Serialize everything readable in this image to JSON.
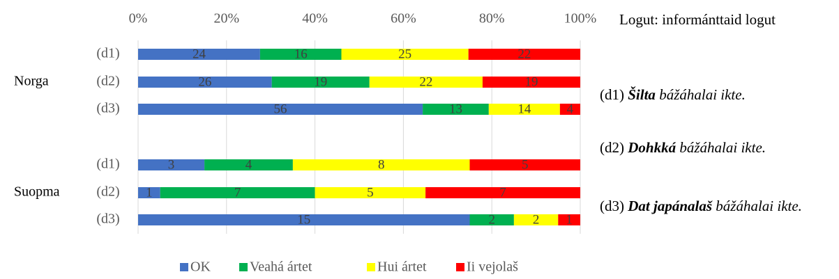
{
  "chart_data": {
    "type": "bar100",
    "orientation": "horizontal",
    "groups": [
      "Norga",
      "Suopma"
    ],
    "categories": [
      "(d1)",
      "(d2)",
      "(d3)",
      "(d1)",
      "(d2)",
      "(d3)"
    ],
    "series": [
      {
        "name": "OK",
        "color": "#4472c4",
        "values": [
          24,
          26,
          56,
          3,
          1,
          15
        ]
      },
      {
        "name": "Veahá ártet",
        "color": "#00b050",
        "values": [
          16,
          19,
          13,
          4,
          7,
          2
        ]
      },
      {
        "name": "Hui ártet",
        "color": "#ffff00",
        "values": [
          25,
          22,
          14,
          8,
          5,
          2
        ]
      },
      {
        "name": "Ii vejolaš",
        "color": "#ff0000",
        "values": [
          22,
          19,
          4,
          5,
          7,
          1
        ]
      }
    ],
    "xlim": [
      0,
      100
    ],
    "xticks": [
      {
        "value": 0,
        "label": "0%"
      },
      {
        "value": 20,
        "label": "20%"
      },
      {
        "value": 40,
        "label": "40%"
      },
      {
        "value": 60,
        "label": "60%"
      },
      {
        "value": 80,
        "label": "80%"
      },
      {
        "value": 100,
        "label": "100%"
      }
    ],
    "grid": true,
    "legend": "bottom",
    "annotation": "Logut: informánttaid logut",
    "notes": [
      {
        "code": "(d1)",
        "bold": "Šilta",
        "rest": "bážáhalai ikte."
      },
      {
        "code": "(d2)",
        "bold": "Dohkká",
        "rest": "bážáhalai ikte."
      },
      {
        "code": "(d3)",
        "bold": "Dat japánalaš",
        "rest": "bážáhalai ikte."
      }
    ]
  }
}
